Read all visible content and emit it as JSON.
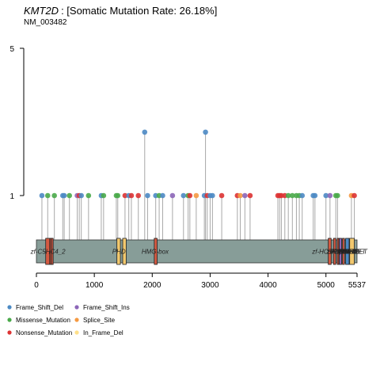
{
  "chart_data": {
    "type": "lollipop",
    "gene": "KMT2D",
    "title_rest": ": [Somatic Mutation Rate: 26.18%]",
    "subtitle": "NM_003482",
    "protein_length": 5537,
    "x_ticks": [
      "0",
      "1000",
      "2000",
      "3000",
      "4000",
      "5000",
      "5537"
    ],
    "x_tick_values": [
      0,
      1000,
      2000,
      3000,
      4000,
      5000,
      5537
    ],
    "y_ticks": [
      "1",
      "5"
    ],
    "y_tick_values": [
      1,
      5
    ],
    "ylim": [
      0,
      5
    ],
    "colors": {
      "Frame_Shift_Del": "#4C8AC4",
      "Missense_Mutation": "#4AAA4A",
      "Nonsense_Mutation": "#DD3333",
      "Frame_Shift_Ins": "#8C66B8",
      "Splice_Site": "#F59A42",
      "In_Frame_Del": "#FFE08A",
      "protein": "#879D98",
      "domain_orange": "#F2C86E",
      "domain_red": "#D55A42"
    },
    "legend": [
      {
        "label": "Frame_Shift_Del",
        "type": "Frame_Shift_Del"
      },
      {
        "label": "Frame_Shift_Ins",
        "type": "Frame_Shift_Ins"
      },
      {
        "label": "Missense_Mutation",
        "type": "Missense_Mutation"
      },
      {
        "label": "Splice_Site",
        "type": "Splice_Site"
      },
      {
        "label": "Nonsense_Mutation",
        "type": "Nonsense_Mutation"
      },
      {
        "label": "In_Frame_Del",
        "type": "In_Frame_Del"
      }
    ],
    "domains": [
      {
        "start": 160,
        "end": 230,
        "color": "domain_red"
      },
      {
        "start": 235,
        "end": 255,
        "color": "domain_red"
      },
      {
        "start": 262,
        "end": 290,
        "color": "domain_red"
      },
      {
        "start": 1390,
        "end": 1450,
        "color": "domain_orange"
      },
      {
        "start": 1490,
        "end": 1550,
        "color": "domain_orange"
      },
      {
        "start": 2035,
        "end": 2085,
        "color": "domain_red"
      },
      {
        "start": 5040,
        "end": 5090,
        "color": "domain_red"
      },
      {
        "start": 5130,
        "end": 5170,
        "color": "domain_red"
      },
      {
        "start": 5195,
        "end": 5215,
        "color": "domain_red"
      },
      {
        "start": 5230,
        "end": 5270,
        "color": "Frame_Shift_Ins"
      },
      {
        "start": 5285,
        "end": 5320,
        "color": "domain_red"
      },
      {
        "start": 5340,
        "end": 5400,
        "color": "Frame_Shift_Del"
      },
      {
        "start": 5410,
        "end": 5490,
        "color": "domain_orange"
      }
    ],
    "domain_labels": [
      {
        "text": "zf-C5HC4_2",
        "pos": 200
      },
      {
        "text": "PHD",
        "pos": 1425
      },
      {
        "text": "HMG-box",
        "pos": 2050
      },
      {
        "text": "zf-HC5HC2H",
        "pos": 5080
      },
      {
        "text": "FYRN",
        "pos": 5240
      },
      {
        "text": "FYRC",
        "pos": 5370
      },
      {
        "text": "SET",
        "pos": 5440
      },
      {
        "text": "PostSET",
        "pos": 5500
      },
      {
        "text": "zf-CW",
        "pos": 5160
      },
      {
        "text": "PHD",
        "pos": 5190
      },
      {
        "text": "ET",
        "pos": 5280
      },
      {
        "text": "ET",
        "pos": 5320
      },
      {
        "text": "post-SET",
        "pos": 5460
      },
      {
        "text": "SET",
        "pos": 5400
      },
      {
        "text": "T2",
        "pos": 5495
      },
      {
        "text": "40",
        "pos": 5520
      }
    ],
    "mutations": [
      {
        "pos": 95,
        "count": 1,
        "type": "Frame_Shift_Del"
      },
      {
        "pos": 195,
        "count": 1,
        "type": "Missense_Mutation"
      },
      {
        "pos": 310,
        "count": 1,
        "type": "Missense_Mutation"
      },
      {
        "pos": 455,
        "count": 1,
        "type": "Frame_Shift_Del"
      },
      {
        "pos": 480,
        "count": 1,
        "type": "Frame_Shift_Del"
      },
      {
        "pos": 570,
        "count": 1,
        "type": "Missense_Mutation"
      },
      {
        "pos": 705,
        "count": 1,
        "type": "Frame_Shift_Ins"
      },
      {
        "pos": 740,
        "count": 1,
        "type": "Nonsense_Mutation"
      },
      {
        "pos": 775,
        "count": 1,
        "type": "Frame_Shift_Del"
      },
      {
        "pos": 900,
        "count": 1,
        "type": "Missense_Mutation"
      },
      {
        "pos": 1120,
        "count": 1,
        "type": "Frame_Shift_Del"
      },
      {
        "pos": 1160,
        "count": 1,
        "type": "Missense_Mutation"
      },
      {
        "pos": 1380,
        "count": 1,
        "type": "Missense_Mutation"
      },
      {
        "pos": 1405,
        "count": 1,
        "type": "Missense_Mutation"
      },
      {
        "pos": 1530,
        "count": 1,
        "type": "Nonsense_Mutation"
      },
      {
        "pos": 1595,
        "count": 1,
        "type": "Frame_Shift_Del"
      },
      {
        "pos": 1640,
        "count": 1,
        "type": "Nonsense_Mutation"
      },
      {
        "pos": 1760,
        "count": 1,
        "type": "Nonsense_Mutation"
      },
      {
        "pos": 1870,
        "count": 2,
        "type": "Frame_Shift_Del"
      },
      {
        "pos": 1920,
        "count": 1,
        "type": "Frame_Shift_Del"
      },
      {
        "pos": 2060,
        "count": 1,
        "type": "Frame_Shift_Del"
      },
      {
        "pos": 2120,
        "count": 1,
        "type": "Missense_Mutation"
      },
      {
        "pos": 2180,
        "count": 1,
        "type": "Frame_Shift_Del"
      },
      {
        "pos": 2350,
        "count": 1,
        "type": "Frame_Shift_Ins"
      },
      {
        "pos": 2540,
        "count": 1,
        "type": "Frame_Shift_Del"
      },
      {
        "pos": 2620,
        "count": 1,
        "type": "Missense_Mutation"
      },
      {
        "pos": 2650,
        "count": 1,
        "type": "Nonsense_Mutation"
      },
      {
        "pos": 2760,
        "count": 1,
        "type": "Splice_Site"
      },
      {
        "pos": 2900,
        "count": 1,
        "type": "Frame_Shift_Del"
      },
      {
        "pos": 2920,
        "count": 2,
        "type": "Frame_Shift_Del"
      },
      {
        "pos": 2950,
        "count": 1,
        "type": "Nonsense_Mutation"
      },
      {
        "pos": 3000,
        "count": 1,
        "type": "Frame_Shift_Del"
      },
      {
        "pos": 3040,
        "count": 1,
        "type": "Frame_Shift_Del"
      },
      {
        "pos": 3200,
        "count": 1,
        "type": "Nonsense_Mutation"
      },
      {
        "pos": 3470,
        "count": 1,
        "type": "Nonsense_Mutation"
      },
      {
        "pos": 3520,
        "count": 1,
        "type": "Splice_Site"
      },
      {
        "pos": 3600,
        "count": 1,
        "type": "Frame_Shift_Ins"
      },
      {
        "pos": 3690,
        "count": 1,
        "type": "Nonsense_Mutation"
      },
      {
        "pos": 4170,
        "count": 1,
        "type": "Nonsense_Mutation"
      },
      {
        "pos": 4200,
        "count": 1,
        "type": "Nonsense_Mutation"
      },
      {
        "pos": 4230,
        "count": 1,
        "type": "Nonsense_Mutation"
      },
      {
        "pos": 4290,
        "count": 1,
        "type": "Nonsense_Mutation"
      },
      {
        "pos": 4350,
        "count": 1,
        "type": "Missense_Mutation"
      },
      {
        "pos": 4420,
        "count": 1,
        "type": "Missense_Mutation"
      },
      {
        "pos": 4490,
        "count": 1,
        "type": "Missense_Mutation"
      },
      {
        "pos": 4540,
        "count": 1,
        "type": "Missense_Mutation"
      },
      {
        "pos": 4590,
        "count": 1,
        "type": "Frame_Shift_Del"
      },
      {
        "pos": 4780,
        "count": 1,
        "type": "Frame_Shift_Del"
      },
      {
        "pos": 4810,
        "count": 1,
        "type": "Frame_Shift_Del"
      },
      {
        "pos": 5000,
        "count": 1,
        "type": "Frame_Shift_Del"
      },
      {
        "pos": 5070,
        "count": 1,
        "type": "Frame_Shift_Ins"
      },
      {
        "pos": 5170,
        "count": 1,
        "type": "Missense_Mutation"
      },
      {
        "pos": 5200,
        "count": 1,
        "type": "Missense_Mutation"
      },
      {
        "pos": 5440,
        "count": 1,
        "type": "Splice_Site"
      },
      {
        "pos": 5490,
        "count": 1,
        "type": "Nonsense_Mutation"
      }
    ]
  }
}
